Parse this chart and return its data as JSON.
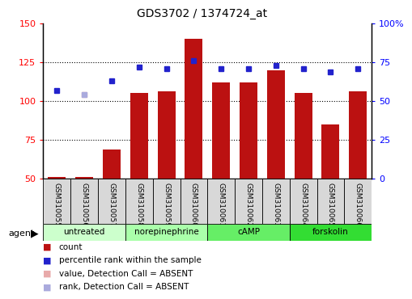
{
  "title": "GDS3702 / 1374724_at",
  "samples": [
    "GSM310055",
    "GSM310056",
    "GSM310057",
    "GSM310058",
    "GSM310059",
    "GSM310060",
    "GSM310061",
    "GSM310062",
    "GSM310063",
    "GSM310064",
    "GSM310065",
    "GSM310066"
  ],
  "bar_values": [
    51,
    51,
    69,
    105,
    106,
    140,
    112,
    112,
    120,
    105,
    85,
    106
  ],
  "dot_values": [
    107,
    null,
    113,
    122,
    121,
    126,
    121,
    121,
    123,
    121,
    119,
    121
  ],
  "dot_absent_value": [
    null,
    104,
    null,
    null,
    null,
    null,
    null,
    null,
    null,
    null,
    null,
    null
  ],
  "dot_absent_rank": [
    null,
    104,
    null,
    null,
    null,
    null,
    null,
    null,
    null,
    null,
    null,
    null
  ],
  "bar_color": "#bb1111",
  "dot_color": "#2222cc",
  "dot_absent_val_color": "#e8aaaa",
  "dot_absent_rank_color": "#aaaadd",
  "ylim_left": [
    50,
    150
  ],
  "ylim_right": [
    0,
    100
  ],
  "yticks_left": [
    50,
    75,
    100,
    125,
    150
  ],
  "yticks_right": [
    0,
    25,
    50,
    75,
    100
  ],
  "ytick_labels_right": [
    "0",
    "25",
    "50",
    "75",
    "100%"
  ],
  "groups": [
    {
      "label": "untreated",
      "start": 0,
      "end": 3,
      "color": "#ccffcc"
    },
    {
      "label": "norepinephrine",
      "start": 3,
      "end": 6,
      "color": "#aaffaa"
    },
    {
      "label": "cAMP",
      "start": 6,
      "end": 9,
      "color": "#66ee66"
    },
    {
      "label": "forskolin",
      "start": 9,
      "end": 12,
      "color": "#33dd33"
    }
  ],
  "legend_items": [
    {
      "label": "count",
      "color": "#bb1111"
    },
    {
      "label": "percentile rank within the sample",
      "color": "#2222cc"
    },
    {
      "label": "value, Detection Call = ABSENT",
      "color": "#e8aaaa"
    },
    {
      "label": "rank, Detection Call = ABSENT",
      "color": "#aaaadd"
    }
  ],
  "xlabel_agent": "agent",
  "label_bg_color": "#d8d8d8",
  "plot_bg_color": "#ffffff"
}
